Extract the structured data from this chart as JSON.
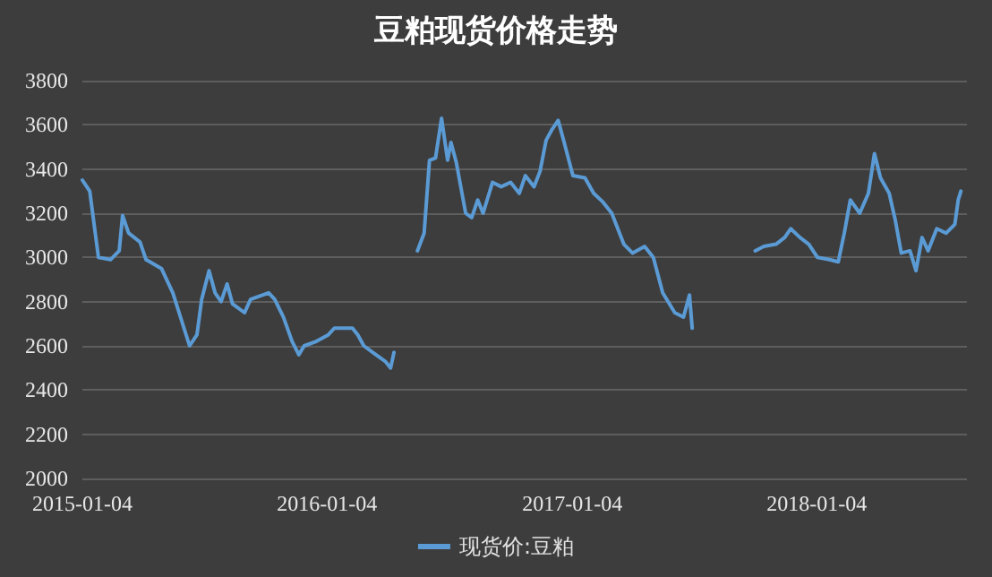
{
  "chart_data": {
    "type": "line",
    "title": "豆粕现货价格走势",
    "x": [
      "2015-01-04",
      "2015-01-15",
      "2015-01-28",
      "2015-02-15",
      "2015-02-28",
      "2015-03-05",
      "2015-03-14",
      "2015-03-31",
      "2015-04-09",
      "2015-05-02",
      "2015-05-19",
      "2015-06-13",
      "2015-06-24",
      "2015-07-01",
      "2015-07-12",
      "2015-07-21",
      "2015-07-30",
      "2015-08-08",
      "2015-08-16",
      "2015-09-03",
      "2015-09-12",
      "2015-10-09",
      "2015-10-18",
      "2015-10-31",
      "2015-11-13",
      "2015-11-23",
      "2015-12-01",
      "2015-12-19",
      "2016-01-06",
      "2016-01-15",
      "2016-02-11",
      "2016-02-19",
      "2016-02-28",
      "2016-03-17",
      "2016-03-31",
      "2016-04-08",
      "2016-04-13",
      "2016-05-01",
      "2016-05-18",
      "2016-05-28",
      "2016-06-05",
      "2016-06-14",
      "2016-06-23",
      "2016-07-02",
      "2016-07-07",
      "2016-07-15",
      "2016-07-29",
      "2016-08-07",
      "2016-08-16",
      "2016-08-24",
      "2016-09-07",
      "2016-09-20",
      "2016-10-04",
      "2016-10-17",
      "2016-10-26",
      "2016-11-08",
      "2016-11-17",
      "2016-11-26",
      "2016-12-05",
      "2016-12-14",
      "2016-12-23",
      "2017-01-05",
      "2017-01-23",
      "2017-02-05",
      "2017-02-19",
      "2017-03-04",
      "2017-03-22",
      "2017-04-04",
      "2017-04-22",
      "2017-05-05",
      "2017-05-19",
      "2017-06-06",
      "2017-06-19",
      "2017-06-28",
      "2017-07-02",
      "2017-08-15",
      "2017-10-04",
      "2017-10-17",
      "2017-11-04",
      "2017-11-17",
      "2017-11-26",
      "2017-12-10",
      "2017-12-23",
      "2018-01-05",
      "2018-01-23",
      "2018-02-05",
      "2018-02-14",
      "2018-02-23",
      "2018-03-09",
      "2018-03-22",
      "2018-03-31",
      "2018-04-09",
      "2018-04-22",
      "2018-05-01",
      "2018-05-10",
      "2018-05-23",
      "2018-06-01",
      "2018-06-10",
      "2018-06-19",
      "2018-07-02",
      "2018-07-16",
      "2018-07-29",
      "2018-08-03",
      "2018-08-07"
    ],
    "series": [
      {
        "name": "现货价:豆粕",
        "color": "#5b9bd5",
        "values": [
          3350,
          3300,
          3000,
          2990,
          3030,
          3190,
          3110,
          3070,
          2990,
          2950,
          2840,
          2600,
          2650,
          2810,
          2940,
          2840,
          2800,
          2880,
          2790,
          2750,
          2810,
          2840,
          2810,
          2730,
          2620,
          2560,
          2600,
          2620,
          2650,
          2680,
          2680,
          2650,
          2600,
          2560,
          2530,
          2500,
          2570,
          null,
          3030,
          3110,
          3440,
          3450,
          3630,
          3440,
          3520,
          3430,
          3200,
          3180,
          3260,
          3200,
          3340,
          3320,
          3340,
          3290,
          3370,
          3320,
          3390,
          3530,
          3580,
          3620,
          3520,
          3370,
          3360,
          3290,
          3250,
          3200,
          3060,
          3020,
          3050,
          3000,
          2840,
          2750,
          2730,
          2830,
          2680,
          null,
          3030,
          3050,
          3060,
          3090,
          3130,
          3090,
          3060,
          3000,
          2990,
          2980,
          3110,
          3260,
          3200,
          3290,
          3470,
          3360,
          3290,
          3170,
          3020,
          3030,
          2940,
          3090,
          3030,
          3130,
          3110,
          3150,
          3260,
          3300
        ]
      }
    ],
    "xlim": [
      "2015-01-04",
      "2018-08-16"
    ],
    "xticks": [
      "2015-01-04",
      "2016-01-04",
      "2017-01-04",
      "2018-01-04"
    ],
    "ylim": [
      2000,
      3800
    ],
    "yticks": [
      2000,
      2200,
      2400,
      2600,
      2800,
      3000,
      3200,
      3400,
      3600,
      3800
    ],
    "grid": "y",
    "legend": "bottom",
    "marker": "none",
    "line_style": "solid"
  }
}
